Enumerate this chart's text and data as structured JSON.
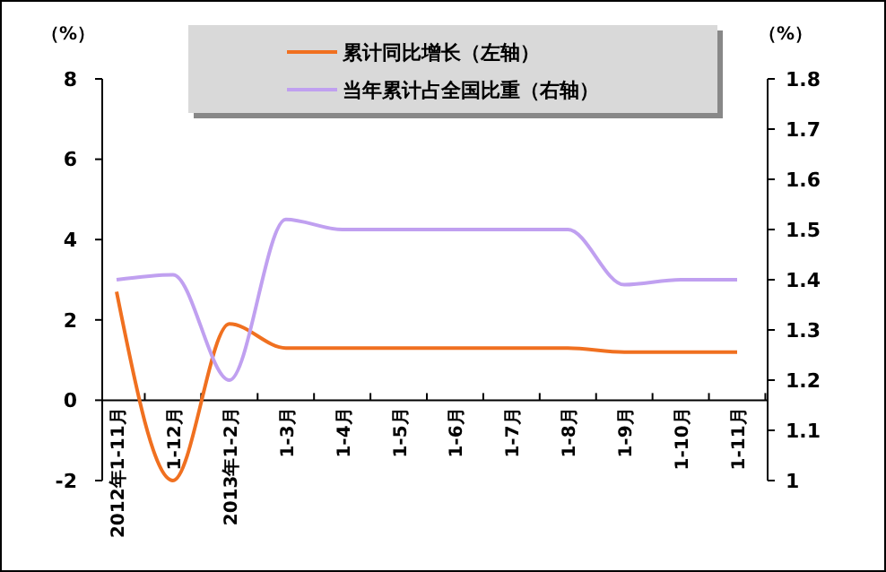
{
  "chart_data": {
    "type": "line",
    "ylabel": "（%）",
    "y2label": "（%）",
    "categories": [
      "2012年1-11月",
      "1-12月",
      "2013年1-2月",
      "1-3月",
      "1-4月",
      "1-5月",
      "1-6月",
      "1-7月",
      "1-8月",
      "1-9月",
      "1-10月",
      "1-11月"
    ],
    "series": [
      {
        "name": "累计同比增长（左轴）",
        "color": "#f07020",
        "values": [
          2.7,
          -2.0,
          1.9,
          1.3,
          1.3,
          1.3,
          1.3,
          1.3,
          1.3,
          1.2,
          1.2,
          1.2
        ]
      },
      {
        "name": "当年累计占全国比重（右轴）",
        "color": "#c0a0f0",
        "axis": "y2",
        "values": [
          1.4,
          1.41,
          1.2,
          1.52,
          1.5,
          1.5,
          1.5,
          1.5,
          1.5,
          1.39,
          1.4,
          1.4
        ]
      }
    ],
    "ylim": [
      -2,
      8
    ],
    "yticks": [
      -2,
      0,
      2,
      4,
      6,
      8
    ],
    "y2lim": [
      1,
      1.8
    ],
    "y2ticks": [
      1,
      1.1,
      1.2,
      1.3,
      1.4,
      1.5,
      1.6,
      1.7,
      1.8
    ],
    "legend": "top",
    "grid": false,
    "marker": "none",
    "line_style": "solid"
  }
}
